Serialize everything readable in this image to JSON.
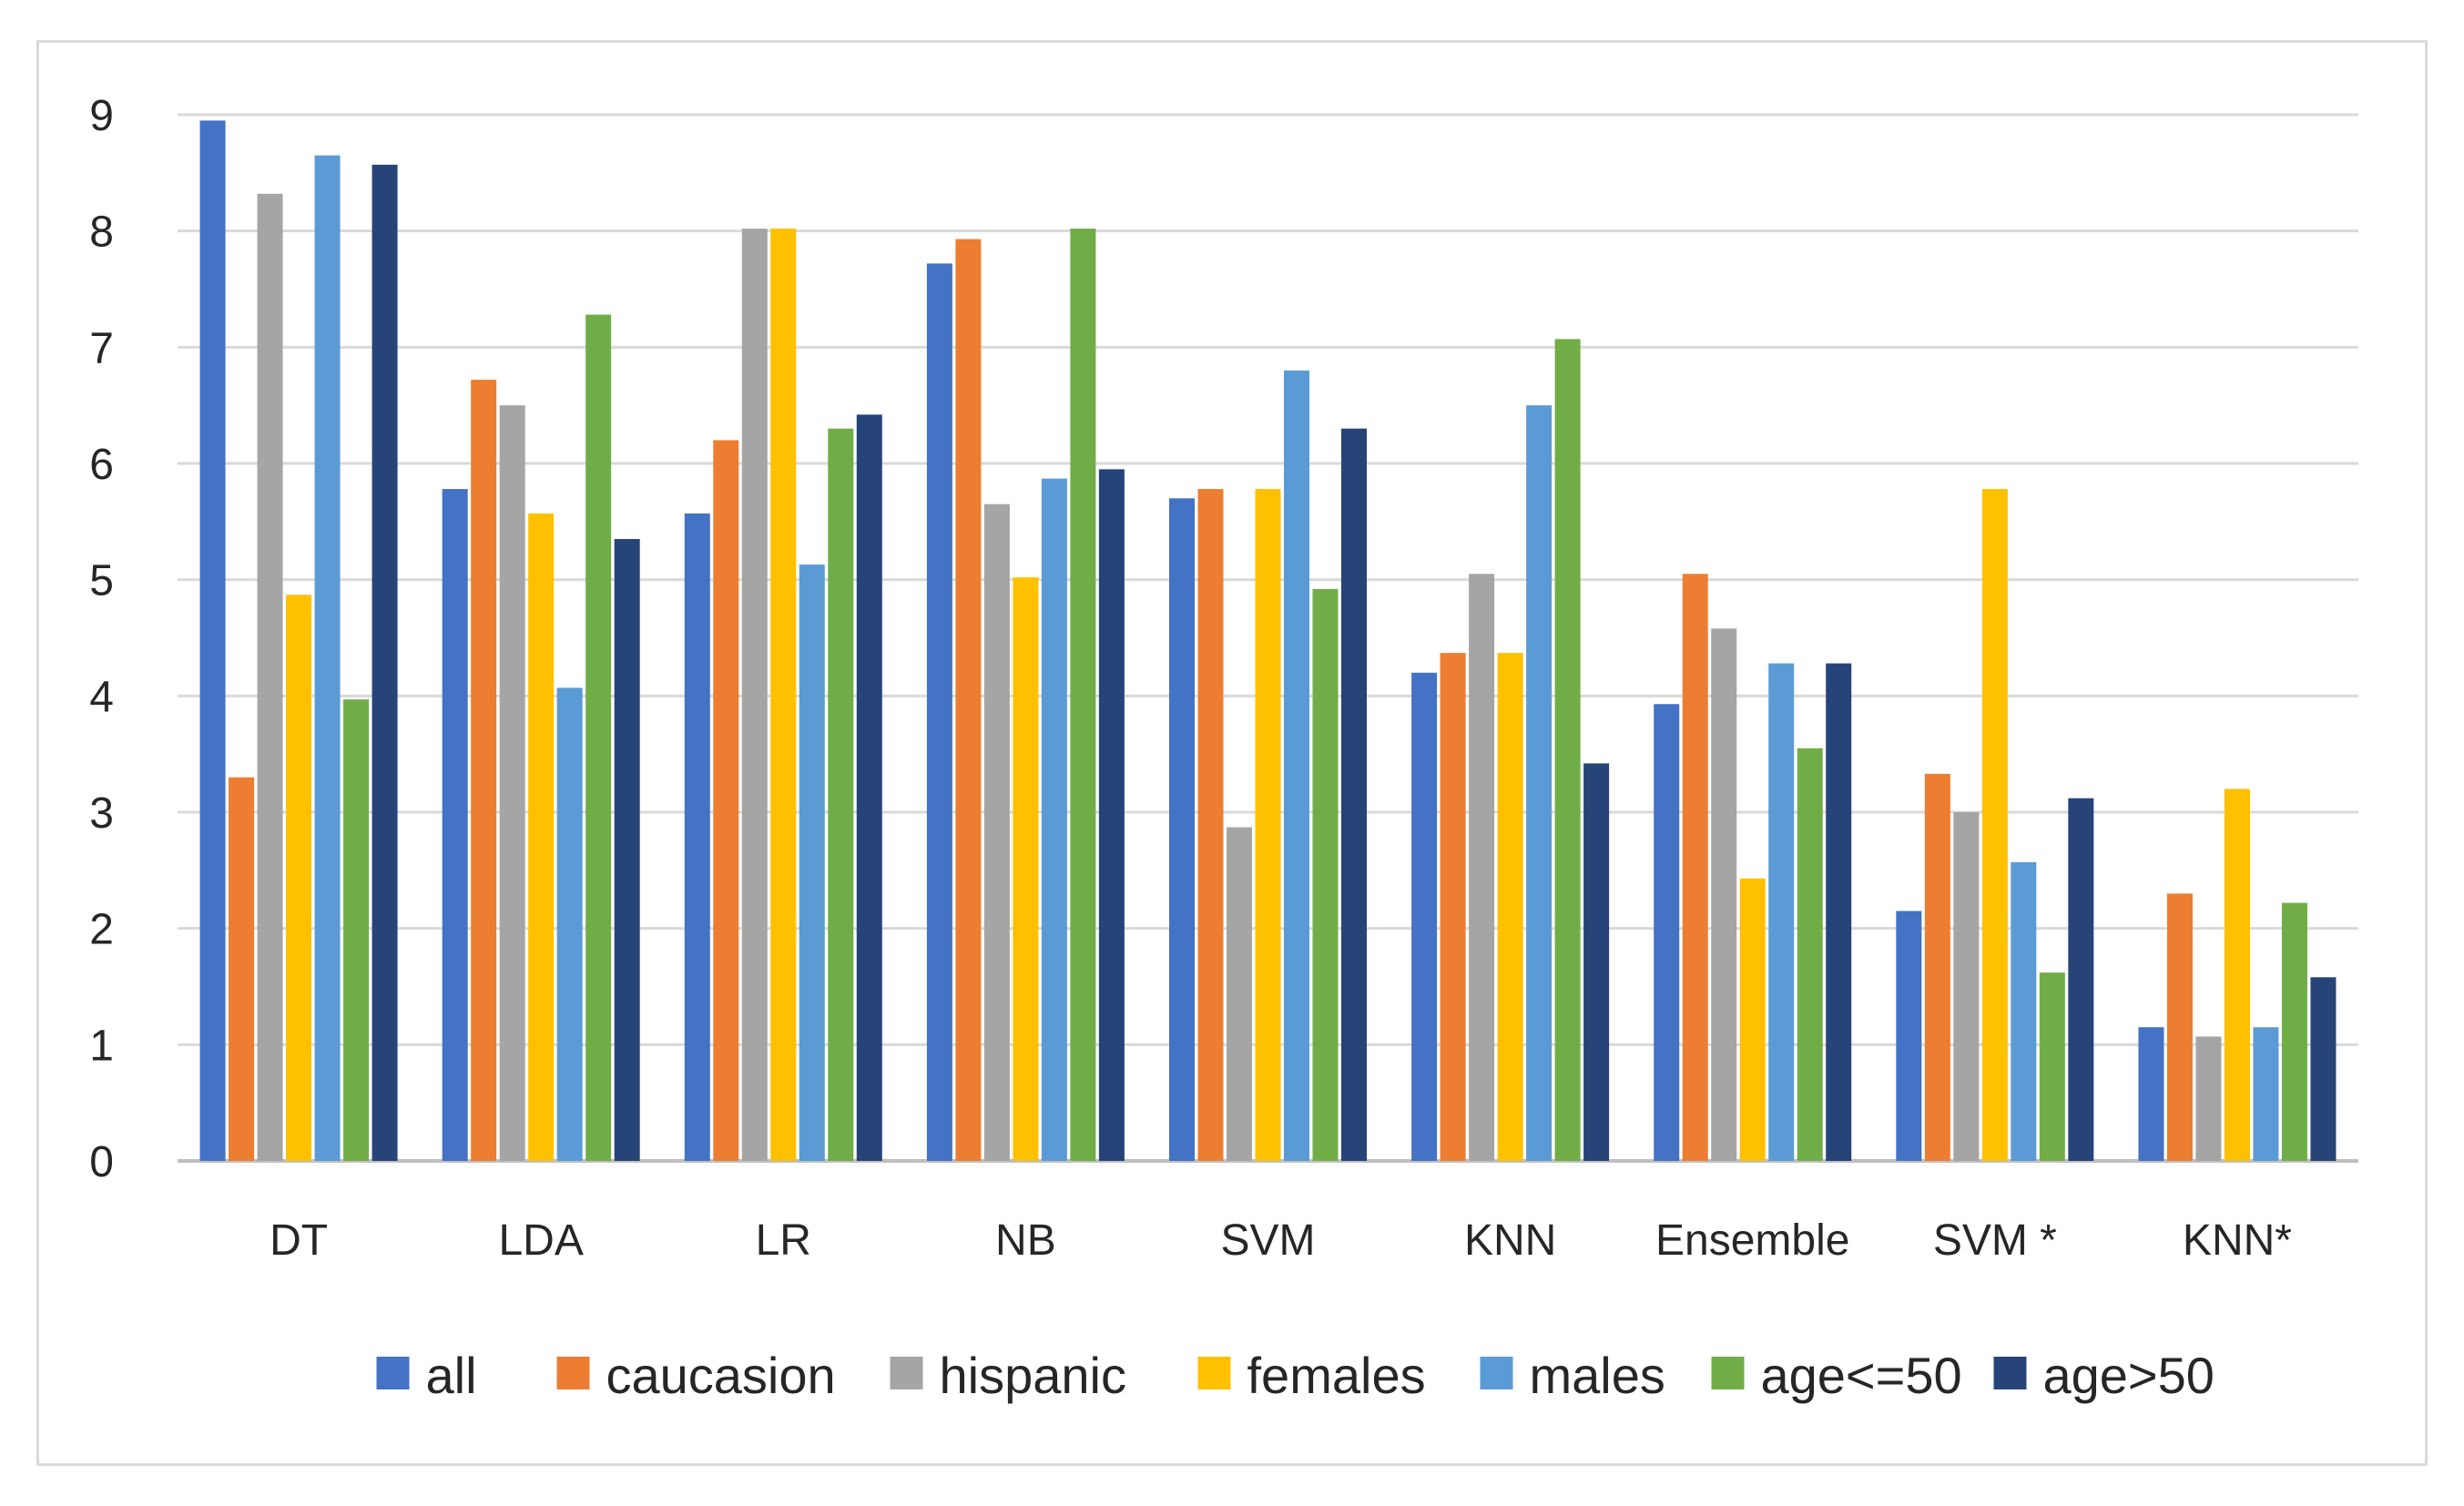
{
  "chart_data": {
    "type": "bar",
    "title": "",
    "xlabel": "",
    "ylabel": "",
    "ylim": [
      0,
      9
    ],
    "yticks": [
      "0",
      "1",
      "2",
      "3",
      "4",
      "5",
      "6",
      "7",
      "8",
      "9"
    ],
    "grid": true,
    "legend_position": "bottom",
    "categories": [
      "DT",
      "LDA",
      "LR",
      "NB",
      "SVM",
      "KNN",
      "Ensemble",
      "SVM *",
      "KNN*"
    ],
    "series": [
      {
        "name": "all",
        "color": "#4472c4",
        "values": [
          8.95,
          5.78,
          5.57,
          7.72,
          5.7,
          4.2,
          3.93,
          2.15,
          1.15
        ]
      },
      {
        "name": "caucasion",
        "color": "#ed7d31",
        "values": [
          3.3,
          6.72,
          6.2,
          7.93,
          5.78,
          4.37,
          5.05,
          3.33,
          2.3
        ]
      },
      {
        "name": "hispanic",
        "color": "#a5a5a5",
        "values": [
          8.32,
          6.5,
          8.02,
          5.65,
          2.87,
          5.05,
          4.58,
          3.0,
          1.07
        ]
      },
      {
        "name": "females",
        "color": "#ffc000",
        "values": [
          4.87,
          5.57,
          8.02,
          5.02,
          5.78,
          4.37,
          2.43,
          5.78,
          3.2
        ]
      },
      {
        "name": "males",
        "color": "#5b9bd5",
        "values": [
          8.65,
          4.07,
          5.13,
          5.87,
          6.8,
          6.5,
          4.28,
          2.57,
          1.15
        ]
      },
      {
        "name": "age<=50",
        "color": "#70ad47",
        "values": [
          3.97,
          7.28,
          6.3,
          8.02,
          4.92,
          7.07,
          3.55,
          1.62,
          2.22
        ]
      },
      {
        "name": "age>50",
        "color": "#264478",
        "values": [
          8.57,
          5.35,
          6.42,
          5.95,
          6.3,
          3.42,
          4.28,
          3.12,
          1.58
        ]
      }
    ]
  }
}
